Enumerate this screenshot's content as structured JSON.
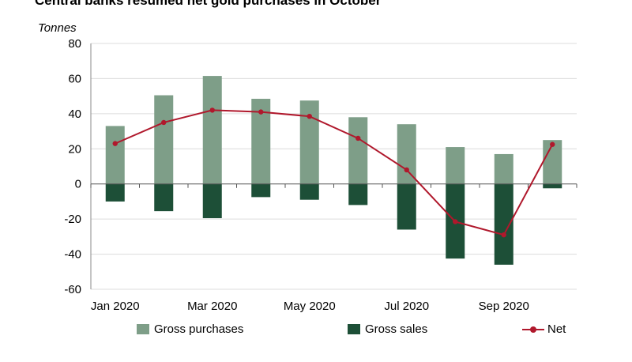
{
  "title": "Central banks resumed net gold purchases in October",
  "colors": {
    "gross_purchases": "#7e9e88",
    "gross_sales": "#1d4f37",
    "net": "#b0182c",
    "grid": "#dcdcdc",
    "axis": "#8a8a8a"
  },
  "legend": {
    "gross_purchases": "Gross purchases",
    "gross_sales": "Gross sales",
    "net": "Net"
  },
  "chart_data": {
    "type": "bar",
    "title": "Central banks resumed net gold purchases in October",
    "ylabel": "Tonnes",
    "ylim": [
      -60,
      80
    ],
    "yticks": [
      80,
      60,
      40,
      20,
      0,
      -20,
      -40,
      -60
    ],
    "grid": true,
    "legend_position": "bottom",
    "categories": [
      "Jan 2020",
      "Feb 2020",
      "Mar 2020",
      "Apr 2020",
      "May 2020",
      "Jun 2020",
      "Jul 2020",
      "Aug 2020",
      "Sep 2020",
      "Oct 2020"
    ],
    "xtick_labels": [
      "Jan 2020",
      "",
      "Mar 2020",
      "",
      "May 2020",
      "",
      "Jul 2020",
      "",
      "Sep 2020",
      ""
    ],
    "series": [
      {
        "name": "Gross purchases",
        "type": "bar",
        "values": [
          33,
          50.5,
          61.5,
          48.5,
          47.5,
          38,
          34,
          21,
          17,
          25
        ]
      },
      {
        "name": "Gross sales",
        "type": "bar",
        "values": [
          -10,
          -15.5,
          -19.5,
          -7.5,
          -9,
          -12,
          -26,
          -42.5,
          -46,
          -2.5
        ]
      },
      {
        "name": "Net",
        "type": "line",
        "values": [
          23,
          35,
          42,
          41,
          38.5,
          26,
          8,
          -21.5,
          -29,
          22.5
        ]
      }
    ]
  }
}
